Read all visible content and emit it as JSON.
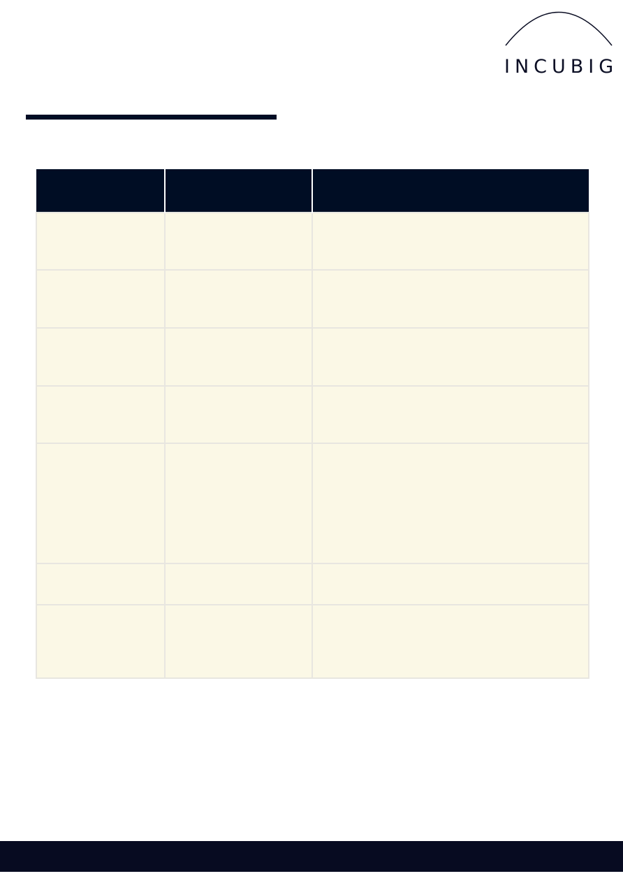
{
  "brand": {
    "logo_text": "INCUBIG"
  },
  "colors": {
    "navy": "#000d24",
    "cell_background": "#fbf8e6",
    "cell_border": "#e8e6e0",
    "footer": "#070b21"
  },
  "table": {
    "headers": [
      "",
      "",
      ""
    ],
    "rows": [
      [
        "",
        "",
        ""
      ],
      [
        "",
        "",
        ""
      ],
      [
        "",
        "",
        ""
      ],
      [
        "",
        "",
        ""
      ],
      [
        "",
        "",
        ""
      ],
      [
        "",
        "",
        ""
      ],
      [
        "",
        "",
        ""
      ]
    ]
  }
}
